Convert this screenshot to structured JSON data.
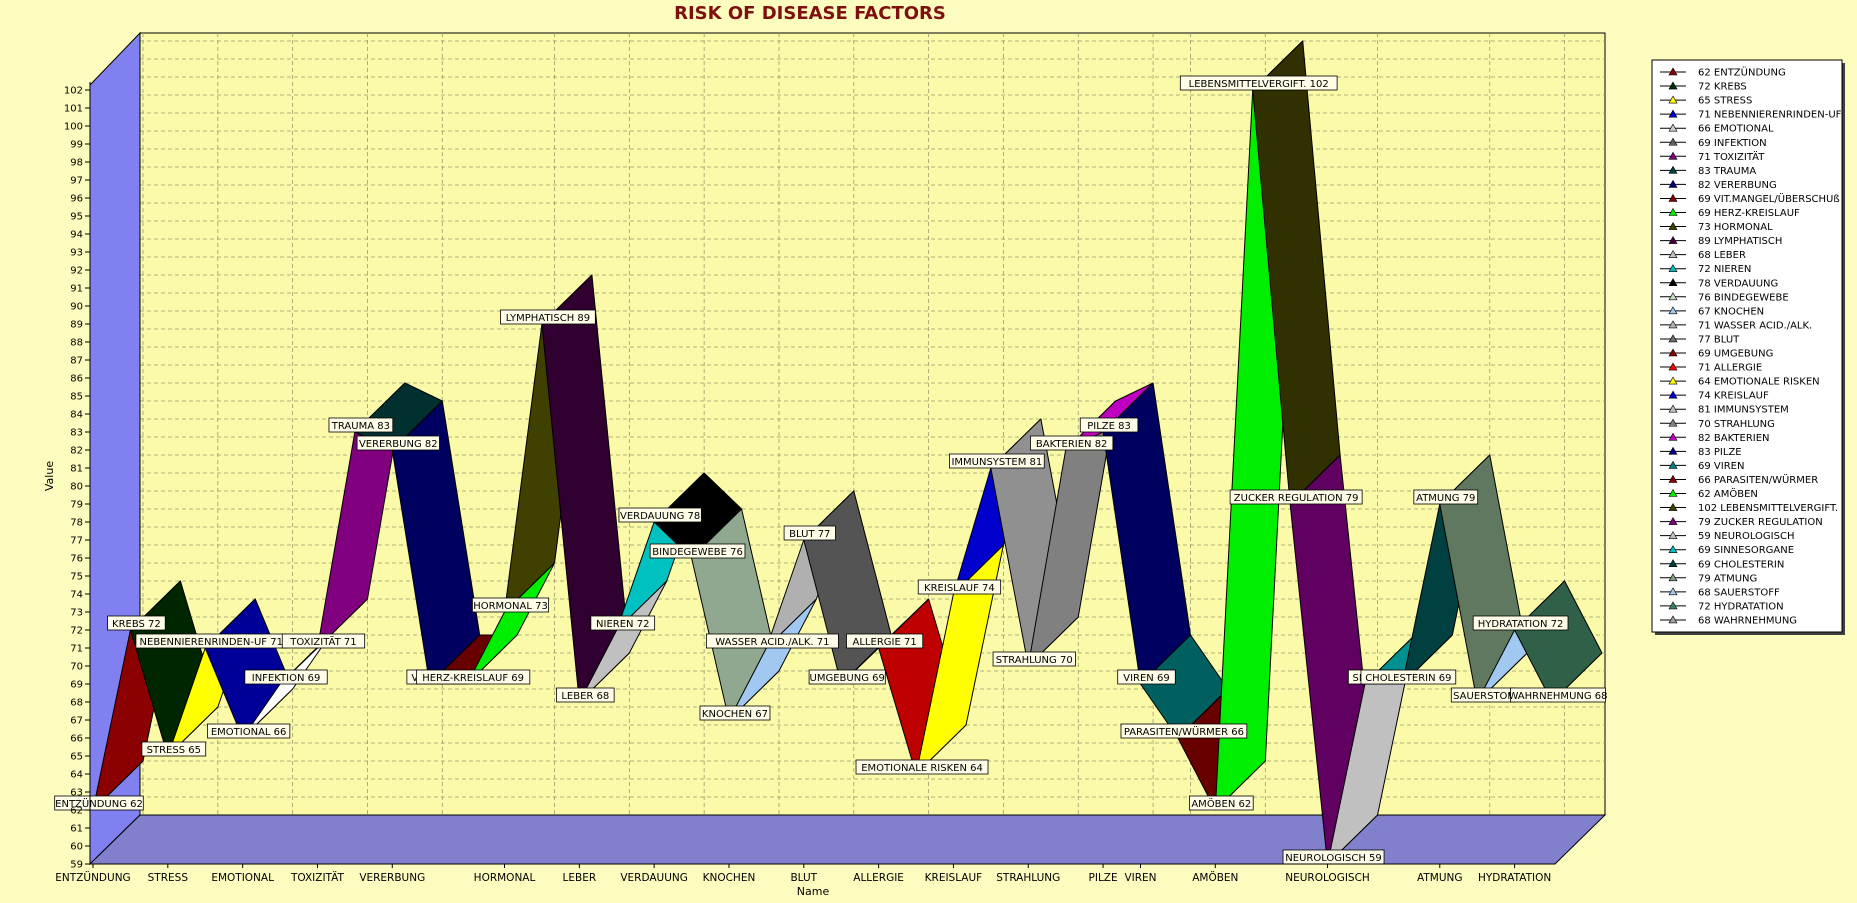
{
  "page": {
    "background": "#fdfcbf",
    "plot_background": "#fbfaa8",
    "wall_color": "#8080f0",
    "floor_color": "#8080cc"
  },
  "chart_data": {
    "type": "area",
    "title": "RISK OF DISEASE FACTORS",
    "title_color": "#7f1010",
    "xlabel": "Name",
    "ylabel": "Value",
    "ylim": [
      59,
      102
    ],
    "grid": true,
    "legend_position": "right",
    "x_tick_labels": [
      "ENTZÜNDUNG",
      "STRESS",
      "EMOTIONAL",
      "TOXIZITÄT",
      "VERERBUNG",
      "HORMONAL",
      "LEBER",
      "VERDAUUNG",
      "KNOCHEN",
      "BLUT",
      "ALLERGIE",
      "KREISLAUF",
      "STRAHLUNG",
      "PILZE",
      "VIREN",
      "AMÖBEN",
      "NEUROLOGISCH",
      "ATMUNG",
      "HYDRATATION"
    ],
    "categories": [
      "ENTZÜNDUNG",
      "KREBS",
      "STRESS",
      "NEBENNIERENRINDEN-UF",
      "EMOTIONAL",
      "INFEKTION",
      "TOXIZITÄT",
      "TRAUMA",
      "VERERBUNG",
      "VIT.MANGEL/ÜBERSCHUß",
      "HERZ-KREISLAUF",
      "HORMONAL",
      "LYMPHATISCH",
      "LEBER",
      "NIEREN",
      "VERDAUUNG",
      "BINDEGEWEBE",
      "KNOCHEN",
      "WASSER ACID./ALK.",
      "BLUT",
      "UMGEBUNG",
      "ALLERGIE",
      "EMOTIONALE RISKEN",
      "KREISLAUF",
      "IMMUNSYSTEM",
      "STRAHLUNG",
      "BAKTERIEN",
      "PILZE",
      "VIREN",
      "PARASITEN/WÜRMER",
      "AMÖBEN",
      "LEBENSMITTELVERGIFT.",
      "ZUCKER REGULATION",
      "NEUROLOGISCH",
      "SINNESORGANE",
      "CHOLESTERIN",
      "ATMUNG",
      "SAUERSTOFF",
      "HYDRATATION",
      "WAHRNEHMUNG"
    ],
    "values": [
      62,
      72,
      65,
      71,
      66,
      69,
      71,
      83,
      82,
      69,
      69,
      73,
      89,
      68,
      72,
      78,
      76,
      67,
      71,
      77,
      69,
      71,
      64,
      74,
      81,
      70,
      82,
      83,
      69,
      66,
      62,
      102,
      79,
      59,
      69,
      69,
      79,
      68,
      72,
      68
    ],
    "point_labels": [
      "ENTZÜNDUNG 62",
      "KREBS 72",
      "STRESS 65",
      "NEBENNIERENRINDEN-UF 71",
      "EMOTIONAL 66",
      "INFEKTION 69",
      "TOXIZITÄT 71",
      "TRAUMA 83",
      "VERERBUNG 82",
      "VIT.MANG",
      "HERZ-KREISLAUF 69",
      "HORMONAL 73",
      "LYMPHATISCH 89",
      "LEBER 68",
      "NIEREN 72",
      "VERDAUUNG 78",
      "BINDEGEWEBE 76",
      "KNOCHEN 67",
      "WASSER ACID./ALK. 71",
      "BLUT 77",
      "UMGEBUNG 69",
      "ALLERGIE 71",
      "EMOTIONALE RISKEN 64",
      "KREISLAUF 74",
      "IMMUNSYSTEM 81",
      "STRAHLUNG 70",
      "BAKTERIEN 82",
      "PILZE 83",
      "VIREN 69",
      "PARASITEN/WÜRMER 66",
      "AMÖBEN 62",
      "LEBENSMITTELVERGIFT. 102",
      "ZUCKER REGULATION 79",
      "NEUROLOGISCH 59",
      "SINNES",
      "CHOLESTERIN 69",
      "ATMUNG 79",
      "SAUERSTOF",
      "HYDRATATION 72",
      "WAHRNEHMUNG 68"
    ],
    "legend_entries": [
      "62 ENTZÜNDUNG",
      "72 KREBS",
      "65 STRESS",
      "71 NEBENNIERENRINDEN-UF",
      "66 EMOTIONAL",
      "69 INFEKTION",
      "71 TOXIZITÄT",
      "83 TRAUMA",
      "82 VERERBUNG",
      "69 VIT.MANGEL/ÜBERSCHUß",
      "69 HERZ-KREISLAUF",
      "73 HORMONAL",
      "89 LYMPHATISCH",
      "68 LEBER",
      "72 NIEREN",
      "78 VERDAUUNG",
      "76 BINDEGEWEBE",
      "67 KNOCHEN",
      "71 WASSER ACID./ALK.",
      "77 BLUT",
      "69 UMGEBUNG",
      "71 ALLERGIE",
      "64 EMOTIONALE RISKEN",
      "74 KREISLAUF",
      "81 IMMUNSYSTEM",
      "70 STRAHLUNG",
      "82 BAKTERIEN",
      "83 PILZE",
      "69 VIREN",
      "66 PARASITEN/WÜRMER",
      "62 AMÖBEN",
      "102 LEBENSMITTELVERGIFT.",
      "79 ZUCKER REGULATION",
      "59 NEUROLOGISCH",
      "69 SINNESORGANE",
      "69 CHOLESTERIN",
      "79 ATMUNG",
      "68 SAUERSTOFF",
      "72 HYDRATATION",
      "68 WAHRNEHMUNG"
    ],
    "colors": [
      "#8b0000",
      "#003300",
      "#ffff00",
      "#0000cc",
      "#ffffff",
      "#606060",
      "#800080",
      "#004040",
      "#000080",
      "#8b0000",
      "#00ee00",
      "#404000",
      "#400040",
      "#c0c0c0",
      "#00c0c0",
      "#000000",
      "#c0e0c0",
      "#a0c8f0",
      "#b0b0b0",
      "#707070",
      "#8b0000",
      "#ff0000",
      "#ffff00",
      "#0000cc",
      "#c0c0c0",
      "#808080",
      "#c000c0",
      "#000080",
      "#008080",
      "#8b0000",
      "#00ee00",
      "#404000",
      "#800080",
      "#c0c0c0",
      "#00c0c0",
      "#004040",
      "#80a080",
      "#a0c8f0",
      "#408060",
      "#a0a0a0"
    ]
  }
}
